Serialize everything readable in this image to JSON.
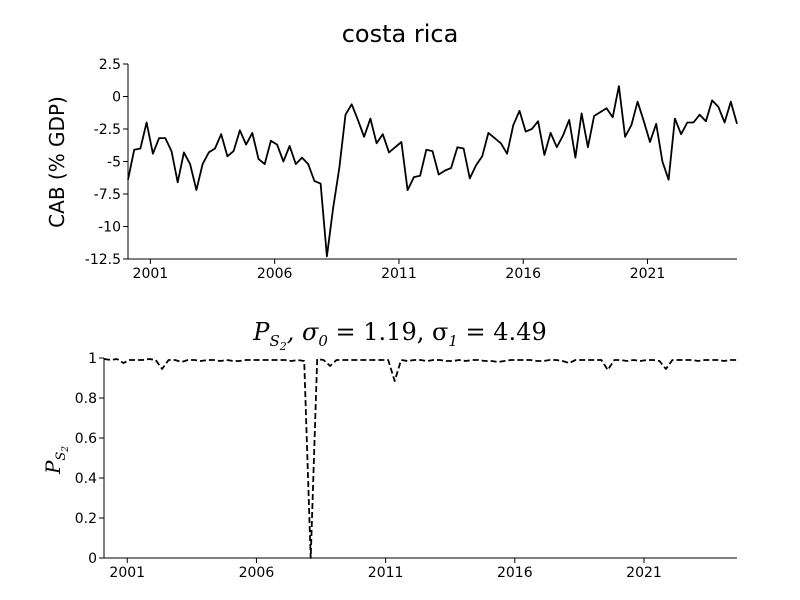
{
  "chart_data": [
    {
      "type": "line",
      "title": "costa rica",
      "xlabel": "",
      "ylabel": "CAB (% GDP)",
      "xlim": [
        2000.1,
        2024.6
      ],
      "ylim": [
        -12.5,
        2.5
      ],
      "xticks": [
        2001,
        2006,
        2011,
        2016,
        2021
      ],
      "xtick_labels": [
        "2001",
        "2006",
        "2011",
        "2016",
        "2021"
      ],
      "yticks": [
        2.5,
        0,
        -2.5,
        -5,
        -7.5,
        -10,
        -12.5
      ],
      "ytick_labels": [
        "2.5",
        "0",
        "-2.5",
        "-5",
        "-7.5",
        "-10",
        "-12.5"
      ],
      "grid": false,
      "series": [
        {
          "line_style": "solid",
          "color": "#000000",
          "x": [
            2000.1,
            2000.35,
            2000.6,
            2000.85,
            2001.1,
            2001.35,
            2001.6,
            2001.85,
            2002.1,
            2002.35,
            2002.6,
            2002.85,
            2003.1,
            2003.35,
            2003.6,
            2003.85,
            2004.1,
            2004.35,
            2004.6,
            2004.85,
            2005.1,
            2005.35,
            2005.6,
            2005.85,
            2006.1,
            2006.35,
            2006.6,
            2006.85,
            2007.1,
            2007.35,
            2007.6,
            2007.85,
            2008.1,
            2008.35,
            2008.6,
            2008.85,
            2009.1,
            2009.35,
            2009.6,
            2009.85,
            2010.1,
            2010.35,
            2010.6,
            2010.85,
            2011.1,
            2011.35,
            2011.6,
            2011.85,
            2012.1,
            2012.35,
            2012.6,
            2012.85,
            2013.1,
            2013.35,
            2013.6,
            2013.85,
            2014.1,
            2014.35,
            2014.6,
            2014.85,
            2015.1,
            2015.35,
            2015.6,
            2015.85,
            2016.1,
            2016.35,
            2016.6,
            2016.85,
            2017.1,
            2017.35,
            2017.6,
            2017.85,
            2018.1,
            2018.35,
            2018.6,
            2018.85,
            2019.1,
            2019.35,
            2019.6,
            2019.85,
            2020.1,
            2020.35,
            2020.6,
            2020.85,
            2021.1,
            2021.35,
            2021.6,
            2021.85,
            2022.1,
            2022.35,
            2022.6,
            2022.85,
            2023.1,
            2023.35,
            2023.6,
            2023.85,
            2024.1,
            2024.35,
            2024.6
          ],
          "y": [
            -6.4,
            -4.1,
            -4.0,
            -2.0,
            -4.4,
            -3.2,
            -3.2,
            -4.2,
            -6.6,
            -4.3,
            -5.2,
            -7.2,
            -5.2,
            -4.3,
            -4.0,
            -2.9,
            -4.6,
            -4.2,
            -2.6,
            -3.7,
            -2.8,
            -4.8,
            -5.2,
            -3.4,
            -3.7,
            -5.0,
            -3.8,
            -5.2,
            -4.7,
            -5.2,
            -6.5,
            -6.7,
            -12.3,
            -8.6,
            -5.5,
            -1.4,
            -0.6,
            -1.8,
            -3.1,
            -1.7,
            -3.6,
            -2.9,
            -4.3,
            -3.9,
            -3.5,
            -7.2,
            -6.2,
            -6.1,
            -4.1,
            -4.2,
            -6.0,
            -5.7,
            -5.5,
            -3.9,
            -4.0,
            -6.3,
            -5.3,
            -4.6,
            -2.8,
            -3.2,
            -3.6,
            -4.4,
            -2.2,
            -1.1,
            -2.7,
            -2.5,
            -1.9,
            -4.5,
            -2.8,
            -3.9,
            -3.0,
            -1.8,
            -4.7,
            -1.3,
            -3.9,
            -1.5,
            -1.2,
            -0.9,
            -1.6,
            0.8,
            -3.1,
            -2.2,
            -0.4,
            -1.9,
            -3.5,
            -2.1,
            -5.0,
            -6.4,
            -1.7,
            -2.9,
            -2.0,
            -2.0,
            -1.4,
            -1.9,
            -0.3,
            -0.8,
            -2.0,
            -0.4,
            -2.1
          ]
        }
      ]
    },
    {
      "type": "line",
      "title": "P_S2, σ0 = 1.19, σ1 = 4.49",
      "title_parts": {
        "p": "P",
        "sub": "S",
        "subsub": "2",
        "rest": ", σ",
        "s0": "0",
        "eq0": " = 1.19, σ",
        "s1": "1",
        "eq1": " = 4.49"
      },
      "xlabel": "",
      "ylabel": "P_S2",
      "ylabel_parts": {
        "p": "P",
        "sub": "S",
        "subsub": "2"
      },
      "xlim": [
        2000.1,
        2024.6
      ],
      "ylim": [
        0,
        1
      ],
      "xticks": [
        2001,
        2006,
        2011,
        2016,
        2021
      ],
      "xtick_labels": [
        "2001",
        "2006",
        "2011",
        "2016",
        "2021"
      ],
      "yticks": [
        0,
        0.2,
        0.4,
        0.6,
        0.8,
        1
      ],
      "ytick_labels": [
        "0",
        "0.2",
        "0.4",
        "0.6",
        "0.8",
        "1"
      ],
      "grid": false,
      "series": [
        {
          "line_style": "dashed",
          "color": "#000000",
          "x": [
            2000.1,
            2000.35,
            2000.6,
            2000.85,
            2001.1,
            2001.35,
            2001.6,
            2001.85,
            2002.1,
            2002.35,
            2002.6,
            2002.85,
            2003.1,
            2003.35,
            2003.6,
            2003.85,
            2004.1,
            2004.35,
            2004.6,
            2004.85,
            2005.1,
            2005.35,
            2005.6,
            2005.85,
            2006.1,
            2006.35,
            2006.6,
            2006.85,
            2007.1,
            2007.35,
            2007.6,
            2007.85,
            2008.1,
            2008.35,
            2008.6,
            2008.85,
            2009.1,
            2009.35,
            2009.6,
            2009.85,
            2010.1,
            2010.35,
            2010.6,
            2010.85,
            2011.1,
            2011.35,
            2011.6,
            2011.85,
            2012.1,
            2012.35,
            2012.6,
            2012.85,
            2013.1,
            2013.35,
            2013.6,
            2013.85,
            2014.1,
            2014.35,
            2014.6,
            2014.85,
            2015.1,
            2015.35,
            2015.6,
            2015.85,
            2016.1,
            2016.35,
            2016.6,
            2016.85,
            2017.1,
            2017.35,
            2017.6,
            2017.85,
            2018.1,
            2018.35,
            2018.6,
            2018.85,
            2019.1,
            2019.35,
            2019.6,
            2019.85,
            2020.1,
            2020.35,
            2020.6,
            2020.85,
            2021.1,
            2021.35,
            2021.6,
            2021.85,
            2022.1,
            2022.35,
            2022.6,
            2022.85,
            2023.1,
            2023.35,
            2023.6,
            2023.85,
            2024.1,
            2024.35,
            2024.6
          ],
          "y": [
            0.995,
            0.99,
            0.995,
            0.975,
            0.99,
            0.99,
            0.99,
            0.995,
            0.99,
            0.945,
            0.99,
            0.99,
            0.98,
            0.99,
            0.99,
            0.985,
            0.99,
            0.99,
            0.985,
            0.99,
            0.985,
            0.985,
            0.99,
            0.99,
            0.99,
            0.99,
            0.99,
            0.99,
            0.99,
            0.985,
            0.99,
            0.985,
            0.0,
            0.995,
            0.99,
            0.96,
            0.99,
            0.99,
            0.99,
            0.99,
            0.99,
            0.99,
            0.99,
            0.99,
            0.99,
            0.885,
            0.99,
            0.985,
            0.99,
            0.99,
            0.985,
            0.99,
            0.99,
            0.985,
            0.985,
            0.99,
            0.985,
            0.99,
            0.99,
            0.985,
            0.985,
            0.98,
            0.985,
            0.99,
            0.99,
            0.99,
            0.99,
            0.985,
            0.985,
            0.99,
            0.99,
            0.985,
            0.975,
            0.99,
            0.99,
            0.99,
            0.99,
            0.99,
            0.94,
            0.99,
            0.99,
            0.985,
            0.99,
            0.985,
            0.99,
            0.99,
            0.985,
            0.945,
            0.99,
            0.99,
            0.99,
            0.99,
            0.985,
            0.99,
            0.99,
            0.99,
            0.985,
            0.99,
            0.99
          ]
        }
      ]
    }
  ]
}
